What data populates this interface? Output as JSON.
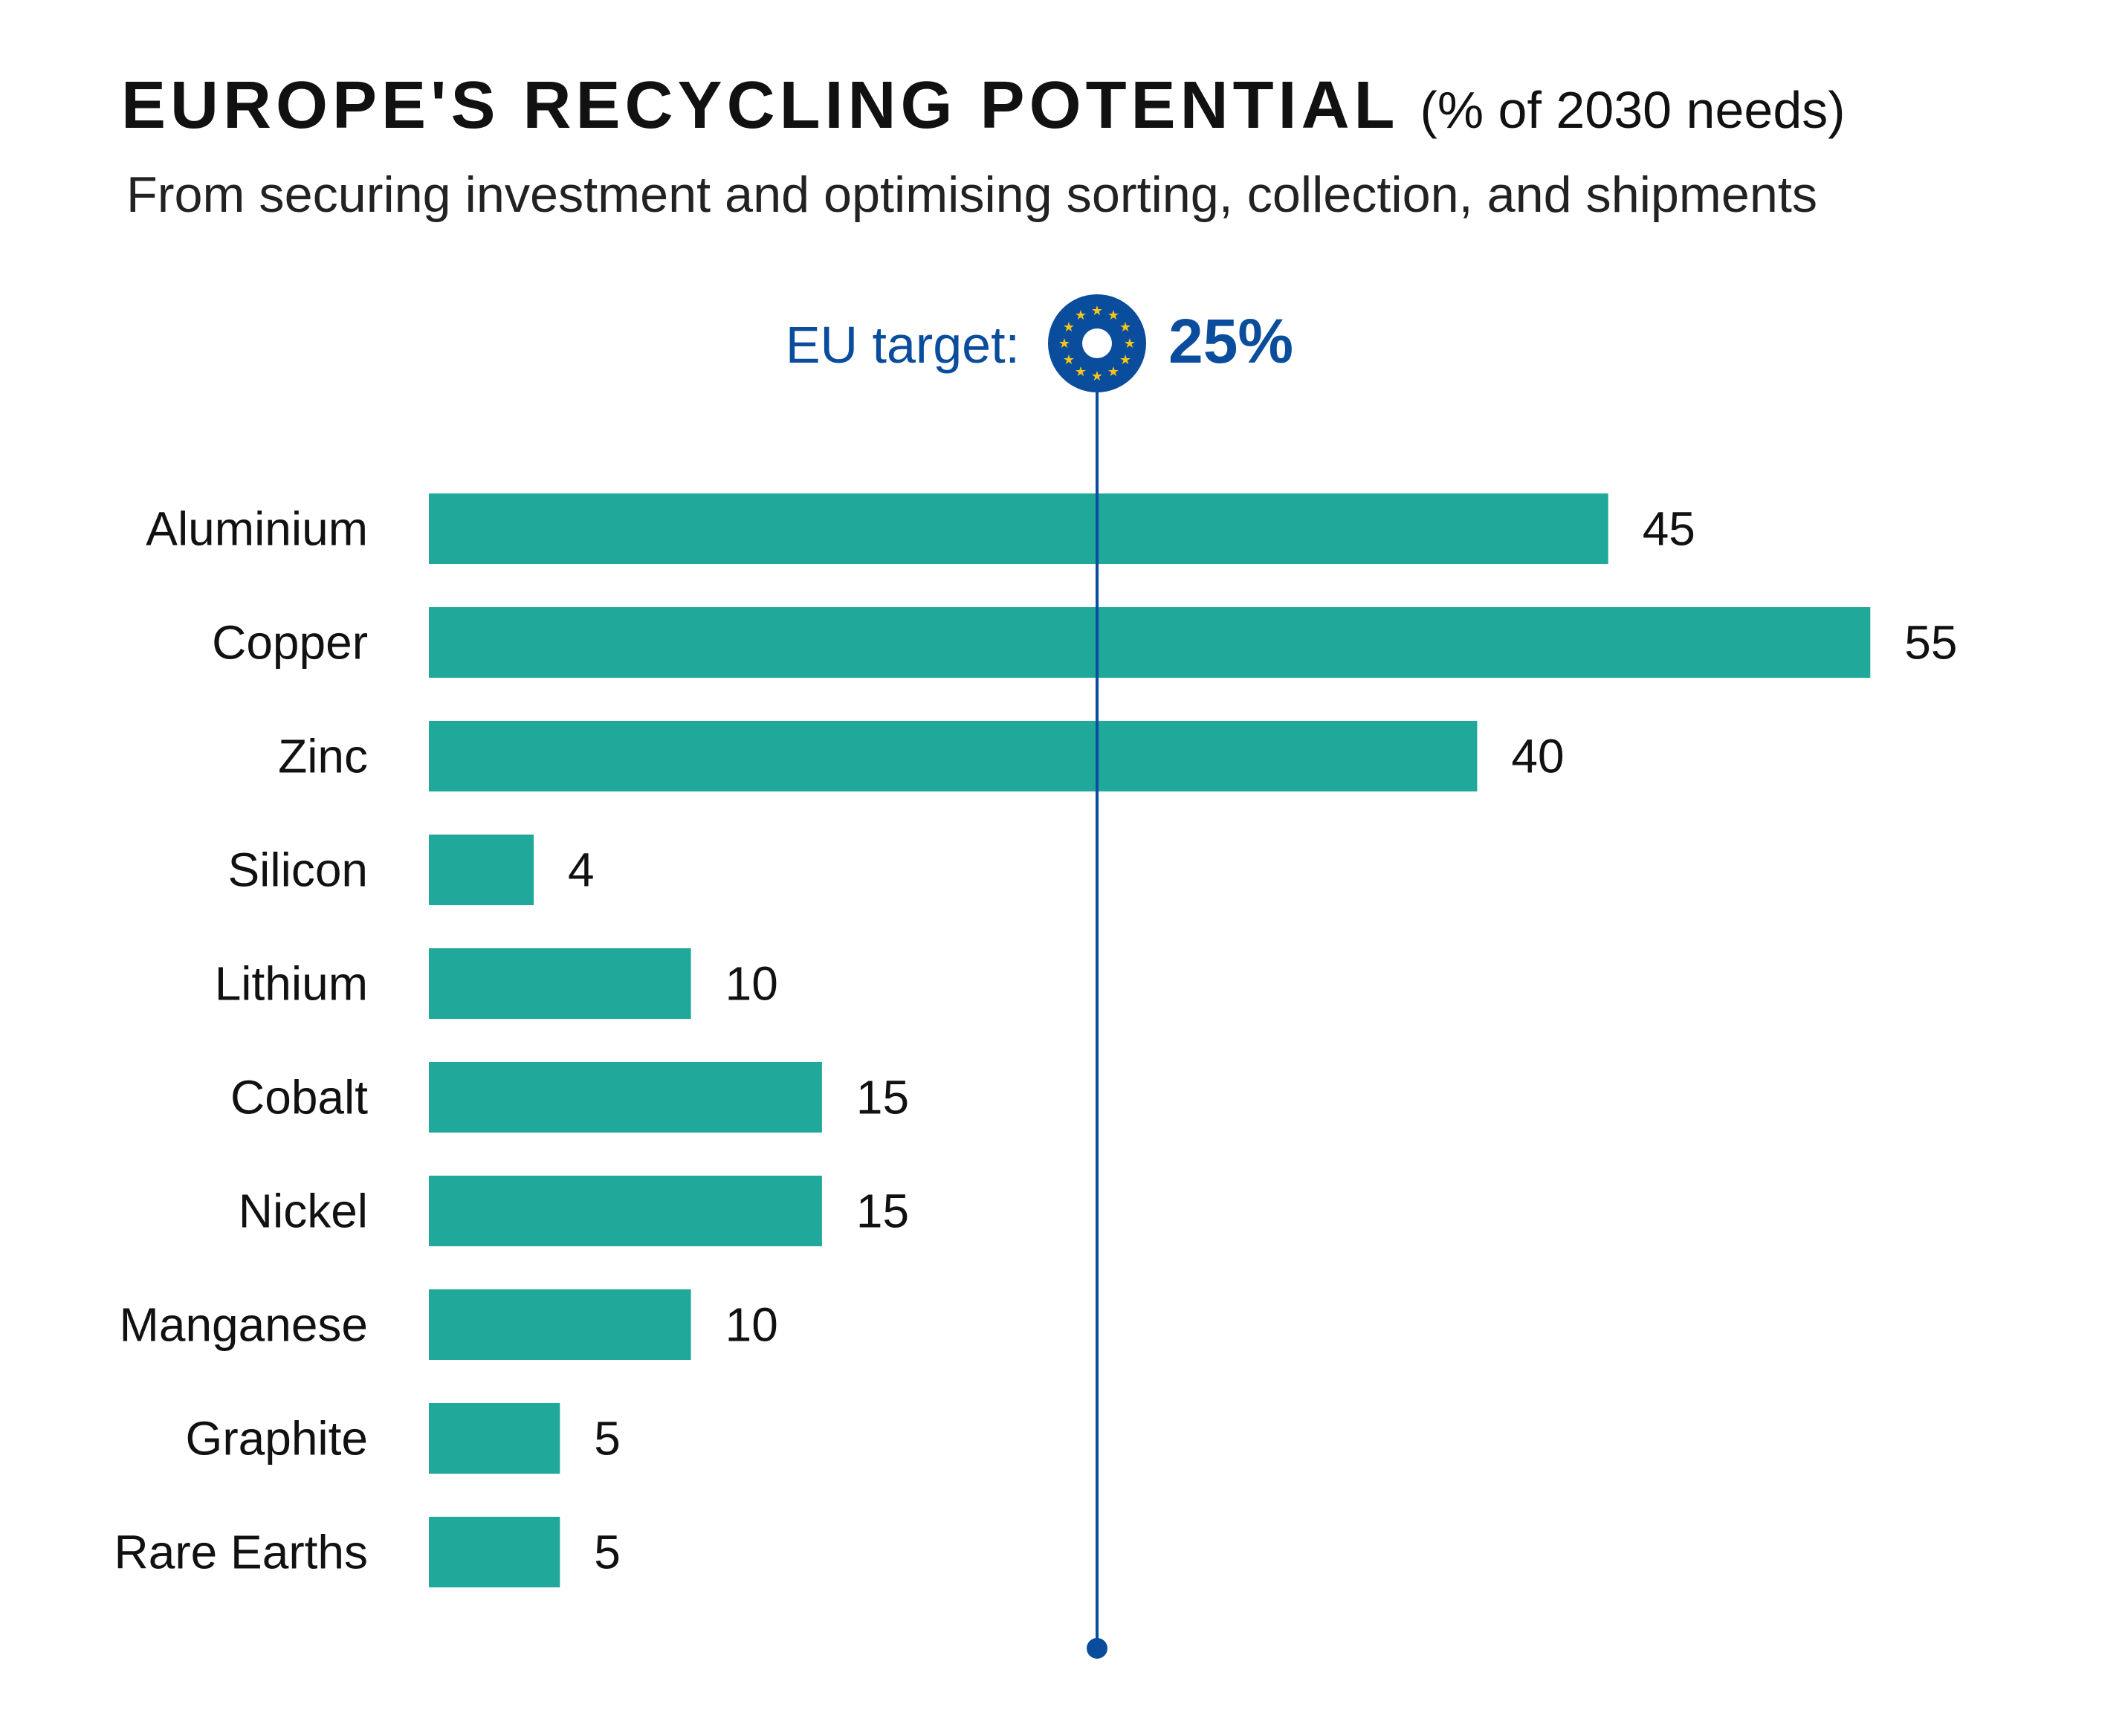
{
  "chart_data": {
    "type": "bar",
    "orientation": "horizontal",
    "title": "EUROPE'S RECYCLING POTENTIAL",
    "title_unit": "(% of 2030 needs)",
    "subtitle": "From securing investment and optimising sorting, collection, and shipments",
    "categories": [
      "Aluminium",
      "Copper",
      "Zinc",
      "Silicon",
      "Lithium",
      "Cobalt",
      "Nickel",
      "Manganese",
      "Graphite",
      "Rare Earths"
    ],
    "values": [
      45,
      55,
      40,
      4,
      10,
      15,
      15,
      10,
      5,
      5
    ],
    "value_labels": [
      "45",
      "55",
      "40",
      "4",
      "10",
      "15",
      "15",
      "10",
      "5",
      "5"
    ],
    "xlim": [
      0,
      55
    ],
    "grid": false,
    "reference_line": {
      "label": "EU target:",
      "value": 25,
      "value_label": "25%"
    },
    "colors": {
      "bar": "#20a89a",
      "target": "#0a4d9c",
      "stars": "#f5c518"
    }
  }
}
